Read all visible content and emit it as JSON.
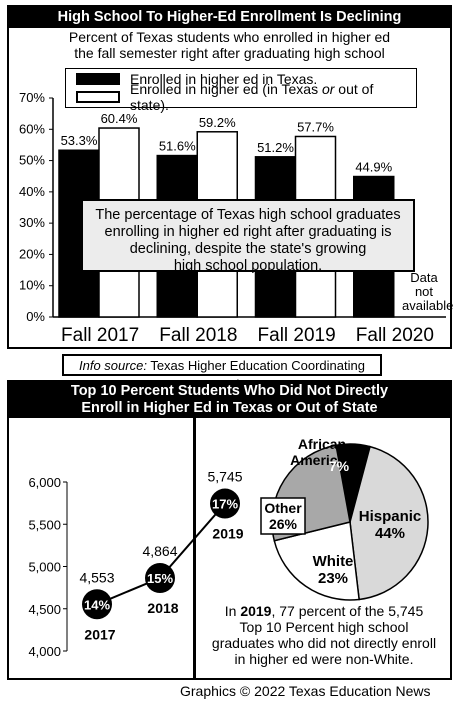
{
  "top_panel": {
    "title": "High School To Higher-Ed Enrollment Is Declining",
    "subtitle_line1": "Percent of Texas students who enrolled in higher ed",
    "subtitle_line2": "the fall semester right after graduating high school",
    "legend_texas": "Enrolled in higher ed in Texas.",
    "legend_any_pre": "Enrolled in higher ed (in Texas ",
    "legend_any_or": "or",
    "legend_any_post": " out of state).",
    "callout_line1": "The percentage of Texas high school graduates",
    "callout_line2": "enrolling in higher ed right after graduating is",
    "callout_line3": "declining, despite the state's growing",
    "callout_line4": "high school population.",
    "na_line1": "Data",
    "na_line2": "not",
    "na_line3": "available"
  },
  "source": {
    "label": "Info source:",
    "text": " Texas Higher Education Coordinating Board"
  },
  "bottom_panel": {
    "title_line1": "Top 10 Percent Students Who Did Not Directly",
    "title_line2": "Enroll in Higher Ed in Texas or Out of State",
    "note_year": "2019",
    "note_line1_rest": ", 77 percent of the 5,745",
    "note_line1_pre": "In ",
    "note_line2": "Top 10 Percent high school",
    "note_line3": "graduates who did not directly enroll",
    "note_line4": "in higher ed were non-White."
  },
  "credit": "Graphics © 2022 Texas Education News",
  "colors": {
    "texas_bar": "#000000",
    "any_bar": "#ffffff",
    "callout_bg": "#ececec",
    "pie_african_american": "#000000",
    "pie_hispanic": "#d9d9d9",
    "pie_white": "#ffffff",
    "pie_other": "#a8a8a8"
  },
  "chart_data": [
    {
      "type": "bar",
      "categories": [
        "Fall 2017",
        "Fall 2018",
        "Fall 2019",
        "Fall 2020"
      ],
      "series": [
        {
          "name": "Enrolled in higher ed in Texas.",
          "values": [
            53.3,
            51.6,
            51.2,
            44.9
          ],
          "labels": [
            "53.3%",
            "51.6%",
            "51.2%",
            "44.9%"
          ]
        },
        {
          "name": "Enrolled in higher ed (in Texas or out of state).",
          "values": [
            60.4,
            59.2,
            57.7,
            null
          ],
          "labels": [
            "60.4%",
            "59.2%",
            "57.7%",
            ""
          ]
        }
      ],
      "yticks": [
        "0%",
        "10%",
        "20%",
        "30%",
        "40%",
        "50%",
        "60%",
        "70%"
      ],
      "ylim": [
        0,
        70
      ],
      "grid": false,
      "legend": "top"
    },
    {
      "type": "line",
      "x": [
        "2017",
        "2018",
        "2019"
      ],
      "values": [
        4553,
        4864,
        5745
      ],
      "value_labels": [
        "4,553",
        "4,864",
        "5,745"
      ],
      "marker_labels": [
        "14%",
        "15%",
        "17%"
      ],
      "yticks": [
        "4,000",
        "4,500",
        "5,000",
        "5,500",
        "6,000"
      ],
      "ylim": [
        4000,
        6000
      ],
      "grid": false
    },
    {
      "type": "pie",
      "slices": [
        {
          "label_line1": "African",
          "label_line2": "American",
          "value": 7,
          "value_label": "7%"
        },
        {
          "label_line1": "Hispanic",
          "label_line2": "",
          "value": 44,
          "value_label": "44%"
        },
        {
          "label_line1": "White",
          "label_line2": "",
          "value": 23,
          "value_label": "23%"
        },
        {
          "label_line1": "Other",
          "label_line2": "",
          "value": 26,
          "value_label": "26%"
        }
      ]
    }
  ]
}
